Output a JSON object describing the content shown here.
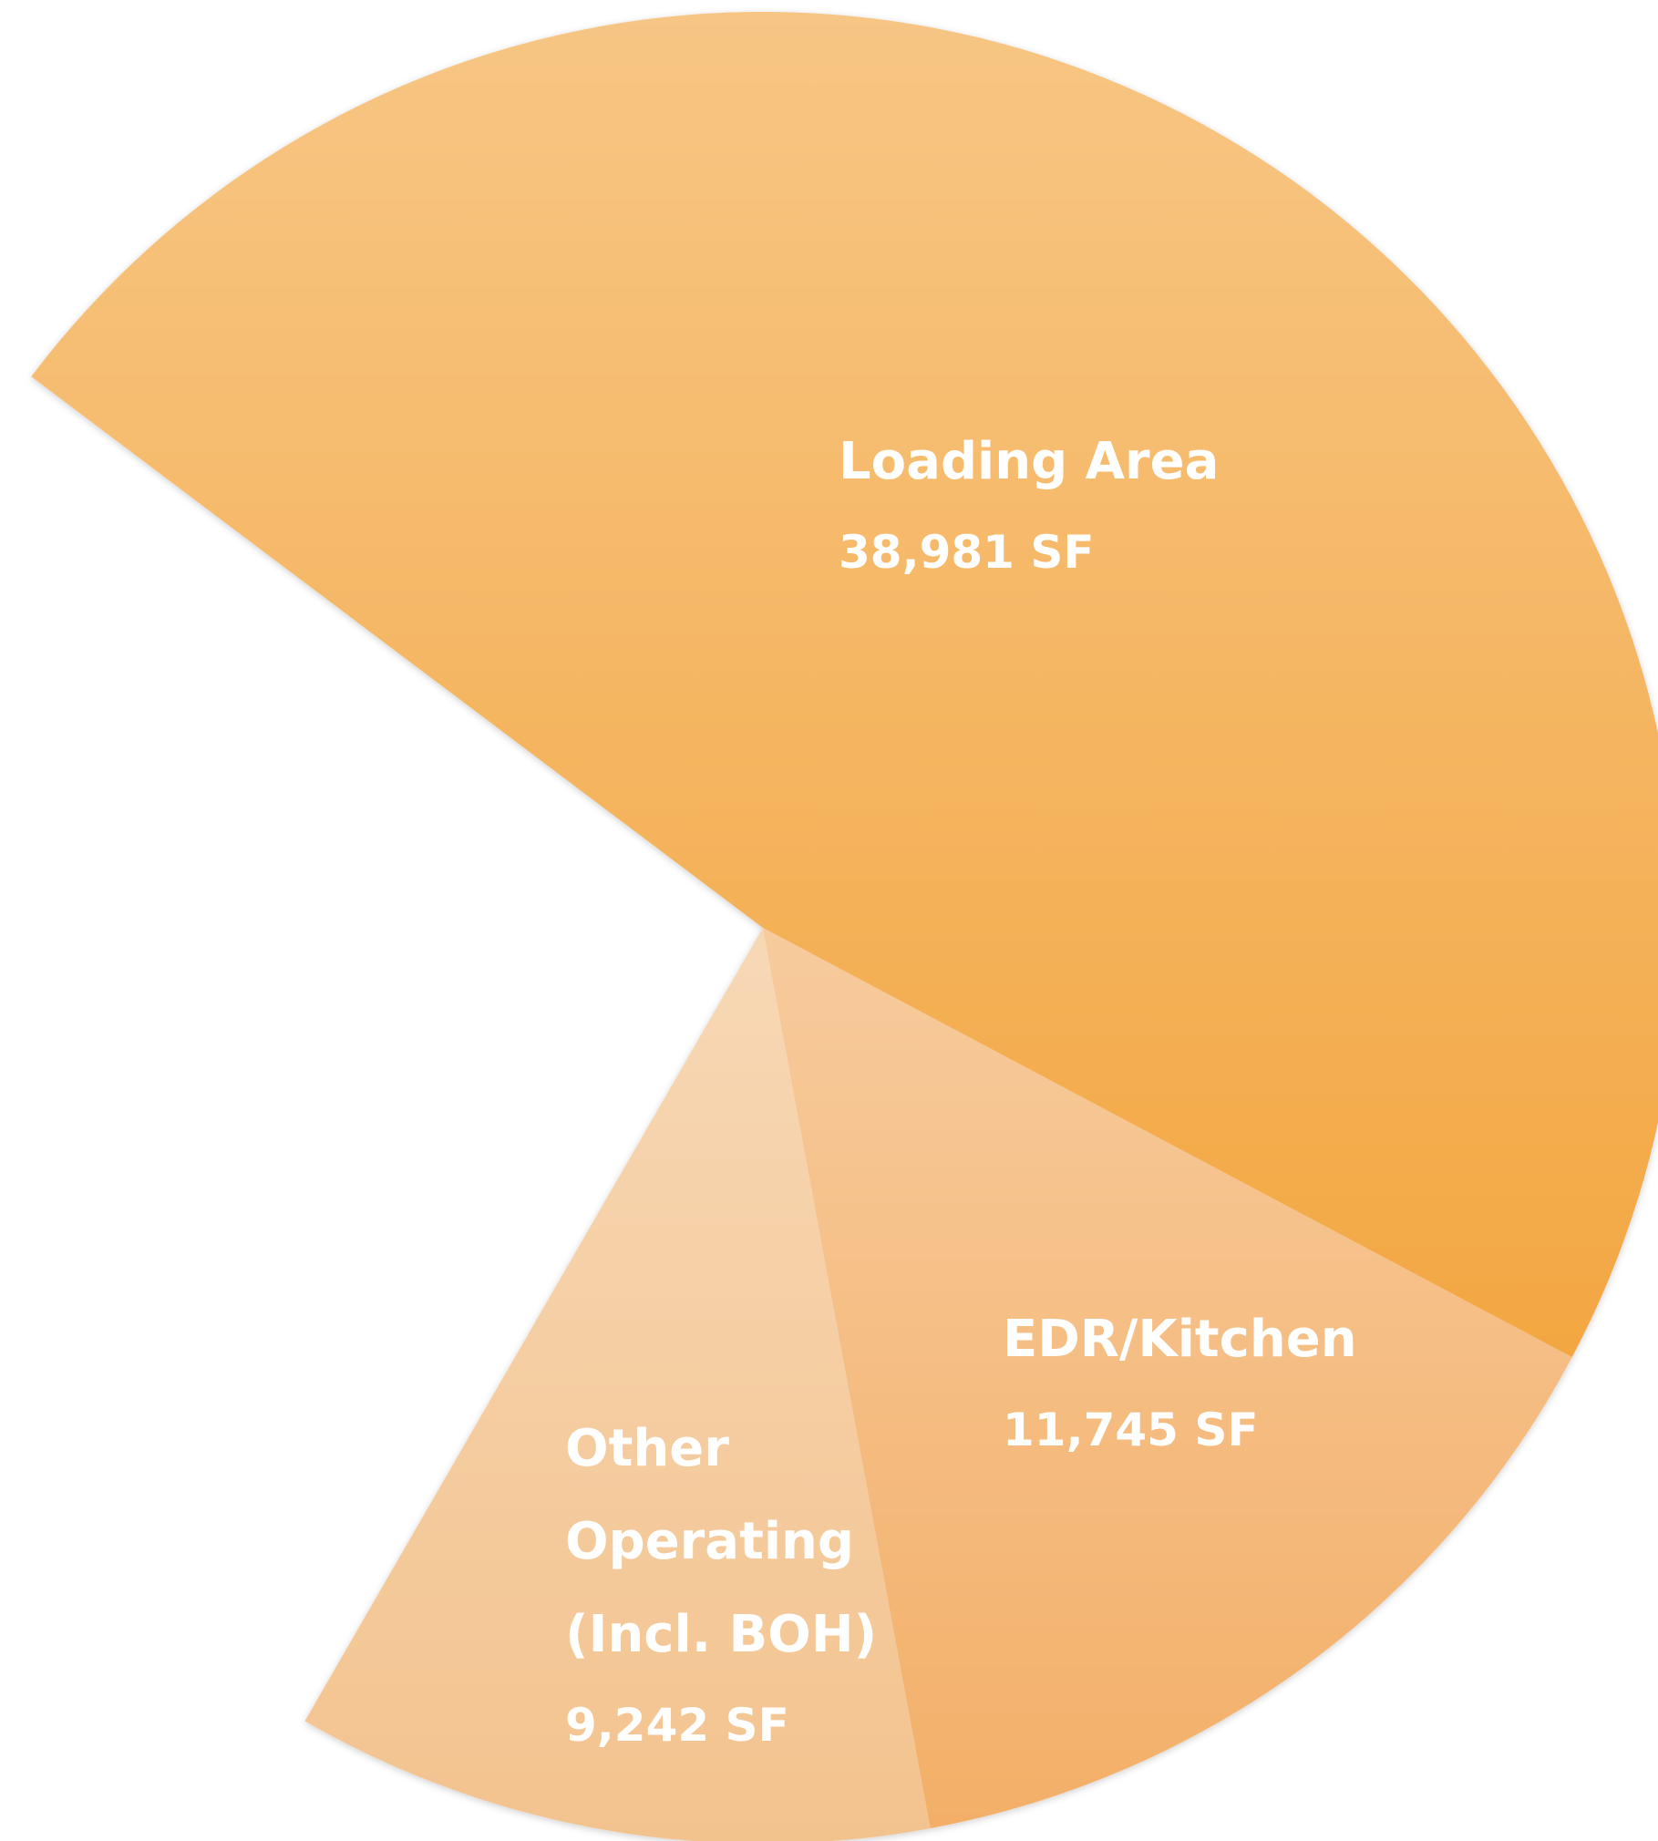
{
  "chart_data": {
    "type": "pie",
    "categories": [
      "Loading Area",
      "EDR/Kitchen",
      "Other Operating (Incl. BOH)"
    ],
    "values": [
      38981,
      11745,
      9242
    ],
    "value_labels": [
      "38,981 SF",
      "11,745 SF",
      "9,242 SF"
    ],
    "colors": [
      "#f3a742",
      "#f3af68",
      "#f3c38e"
    ]
  }
}
